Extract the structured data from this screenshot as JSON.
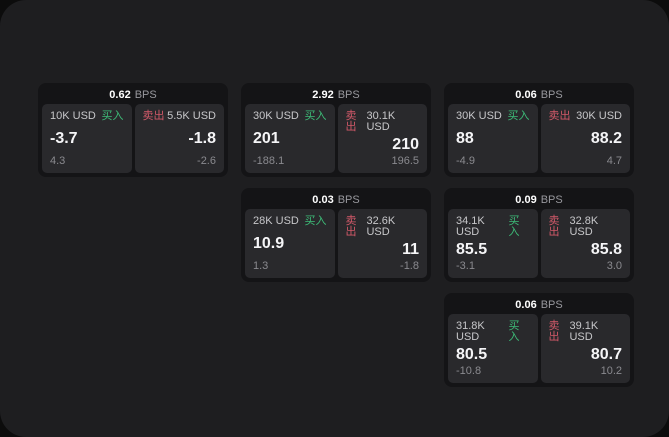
{
  "labels": {
    "buy": "买入",
    "sell": "卖出",
    "bps": "BPS"
  },
  "colors": {
    "backdrop": "#0c0c0c",
    "page_background": "#1e1e20",
    "card_background": "#141416",
    "panel_background": "#29292c",
    "buy_accent": "#3dbc78",
    "sell_accent": "#d25969",
    "price_text": "#f5f5f7",
    "label_text": "#c7c7ca",
    "sub_text": "#8a8a8f"
  },
  "cards": [
    {
      "bps": "0.62",
      "buy": {
        "amount": "10K USD",
        "price": "-3.7",
        "change": "4.3"
      },
      "sell": {
        "amount": "5.5K USD",
        "price": "-1.8",
        "change": "-2.6"
      }
    },
    {
      "bps": "2.92",
      "buy": {
        "amount": "30K USD",
        "price": "201",
        "change": "-188.1"
      },
      "sell": {
        "amount": "30.1K USD",
        "price": "210",
        "change": "196.5"
      }
    },
    {
      "bps": "0.06",
      "buy": {
        "amount": "30K USD",
        "price": "88",
        "change": "-4.9"
      },
      "sell": {
        "amount": "30K USD",
        "price": "88.2",
        "change": "4.7"
      }
    },
    {
      "bps": "0.03",
      "buy": {
        "amount": "28K USD",
        "price": "10.9",
        "change": "1.3"
      },
      "sell": {
        "amount": "32.6K USD",
        "price": "11",
        "change": "-1.8"
      }
    },
    {
      "bps": "0.09",
      "buy": {
        "amount": "34.1K USD",
        "price": "85.5",
        "change": "-3.1"
      },
      "sell": {
        "amount": "32.8K USD",
        "price": "85.8",
        "change": "3.0"
      }
    },
    {
      "bps": "0.06",
      "buy": {
        "amount": "31.8K USD",
        "price": "80.5",
        "change": "-10.8"
      },
      "sell": {
        "amount": "39.1K USD",
        "price": "80.7",
        "change": "10.2"
      }
    }
  ]
}
